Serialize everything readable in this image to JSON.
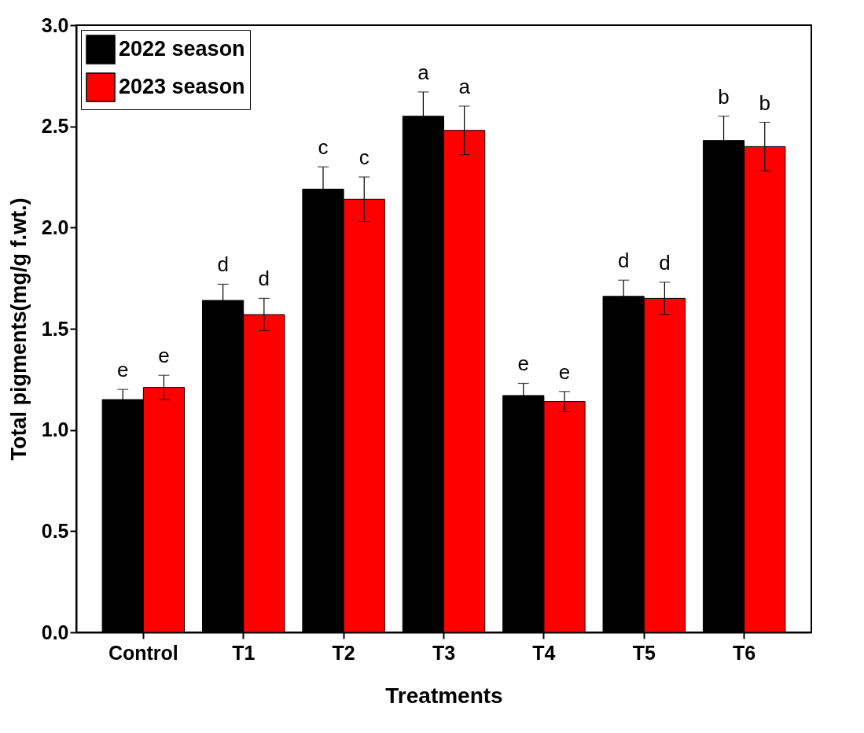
{
  "chart_data": {
    "type": "bar",
    "xlabel": "Treatments",
    "ylabel": "Total pigments(mg/g f.wt.)",
    "categories": [
      "Control",
      "T1",
      "T2",
      "T3",
      "T4",
      "T5",
      "T6"
    ],
    "series": [
      {
        "name": "2022 season",
        "color": "#000000",
        "values": [
          1.15,
          1.64,
          2.19,
          2.55,
          1.17,
          1.66,
          2.43
        ],
        "errors": [
          0.05,
          0.08,
          0.11,
          0.12,
          0.06,
          0.08,
          0.12
        ],
        "value_labels": [
          "e",
          "d",
          "c",
          "a",
          "e",
          "d",
          "b"
        ]
      },
      {
        "name": "2023 season",
        "color": "#ff0000",
        "values": [
          1.21,
          1.57,
          2.14,
          2.48,
          1.14,
          1.65,
          2.4
        ],
        "errors": [
          0.06,
          0.08,
          0.11,
          0.12,
          0.05,
          0.08,
          0.12
        ],
        "value_labels": [
          "e",
          "d",
          "c",
          "a",
          "e",
          "d",
          "b"
        ]
      }
    ],
    "ylim": [
      0,
      3
    ],
    "yticks": [
      {
        "value": 0,
        "label": "0.0"
      },
      0.5,
      {
        "value": 1,
        "label": "1.0"
      },
      1.5,
      {
        "value": 2,
        "label": "2.0"
      },
      2.5,
      {
        "value": 3,
        "label": "3.0"
      }
    ],
    "legend": "top left"
  }
}
